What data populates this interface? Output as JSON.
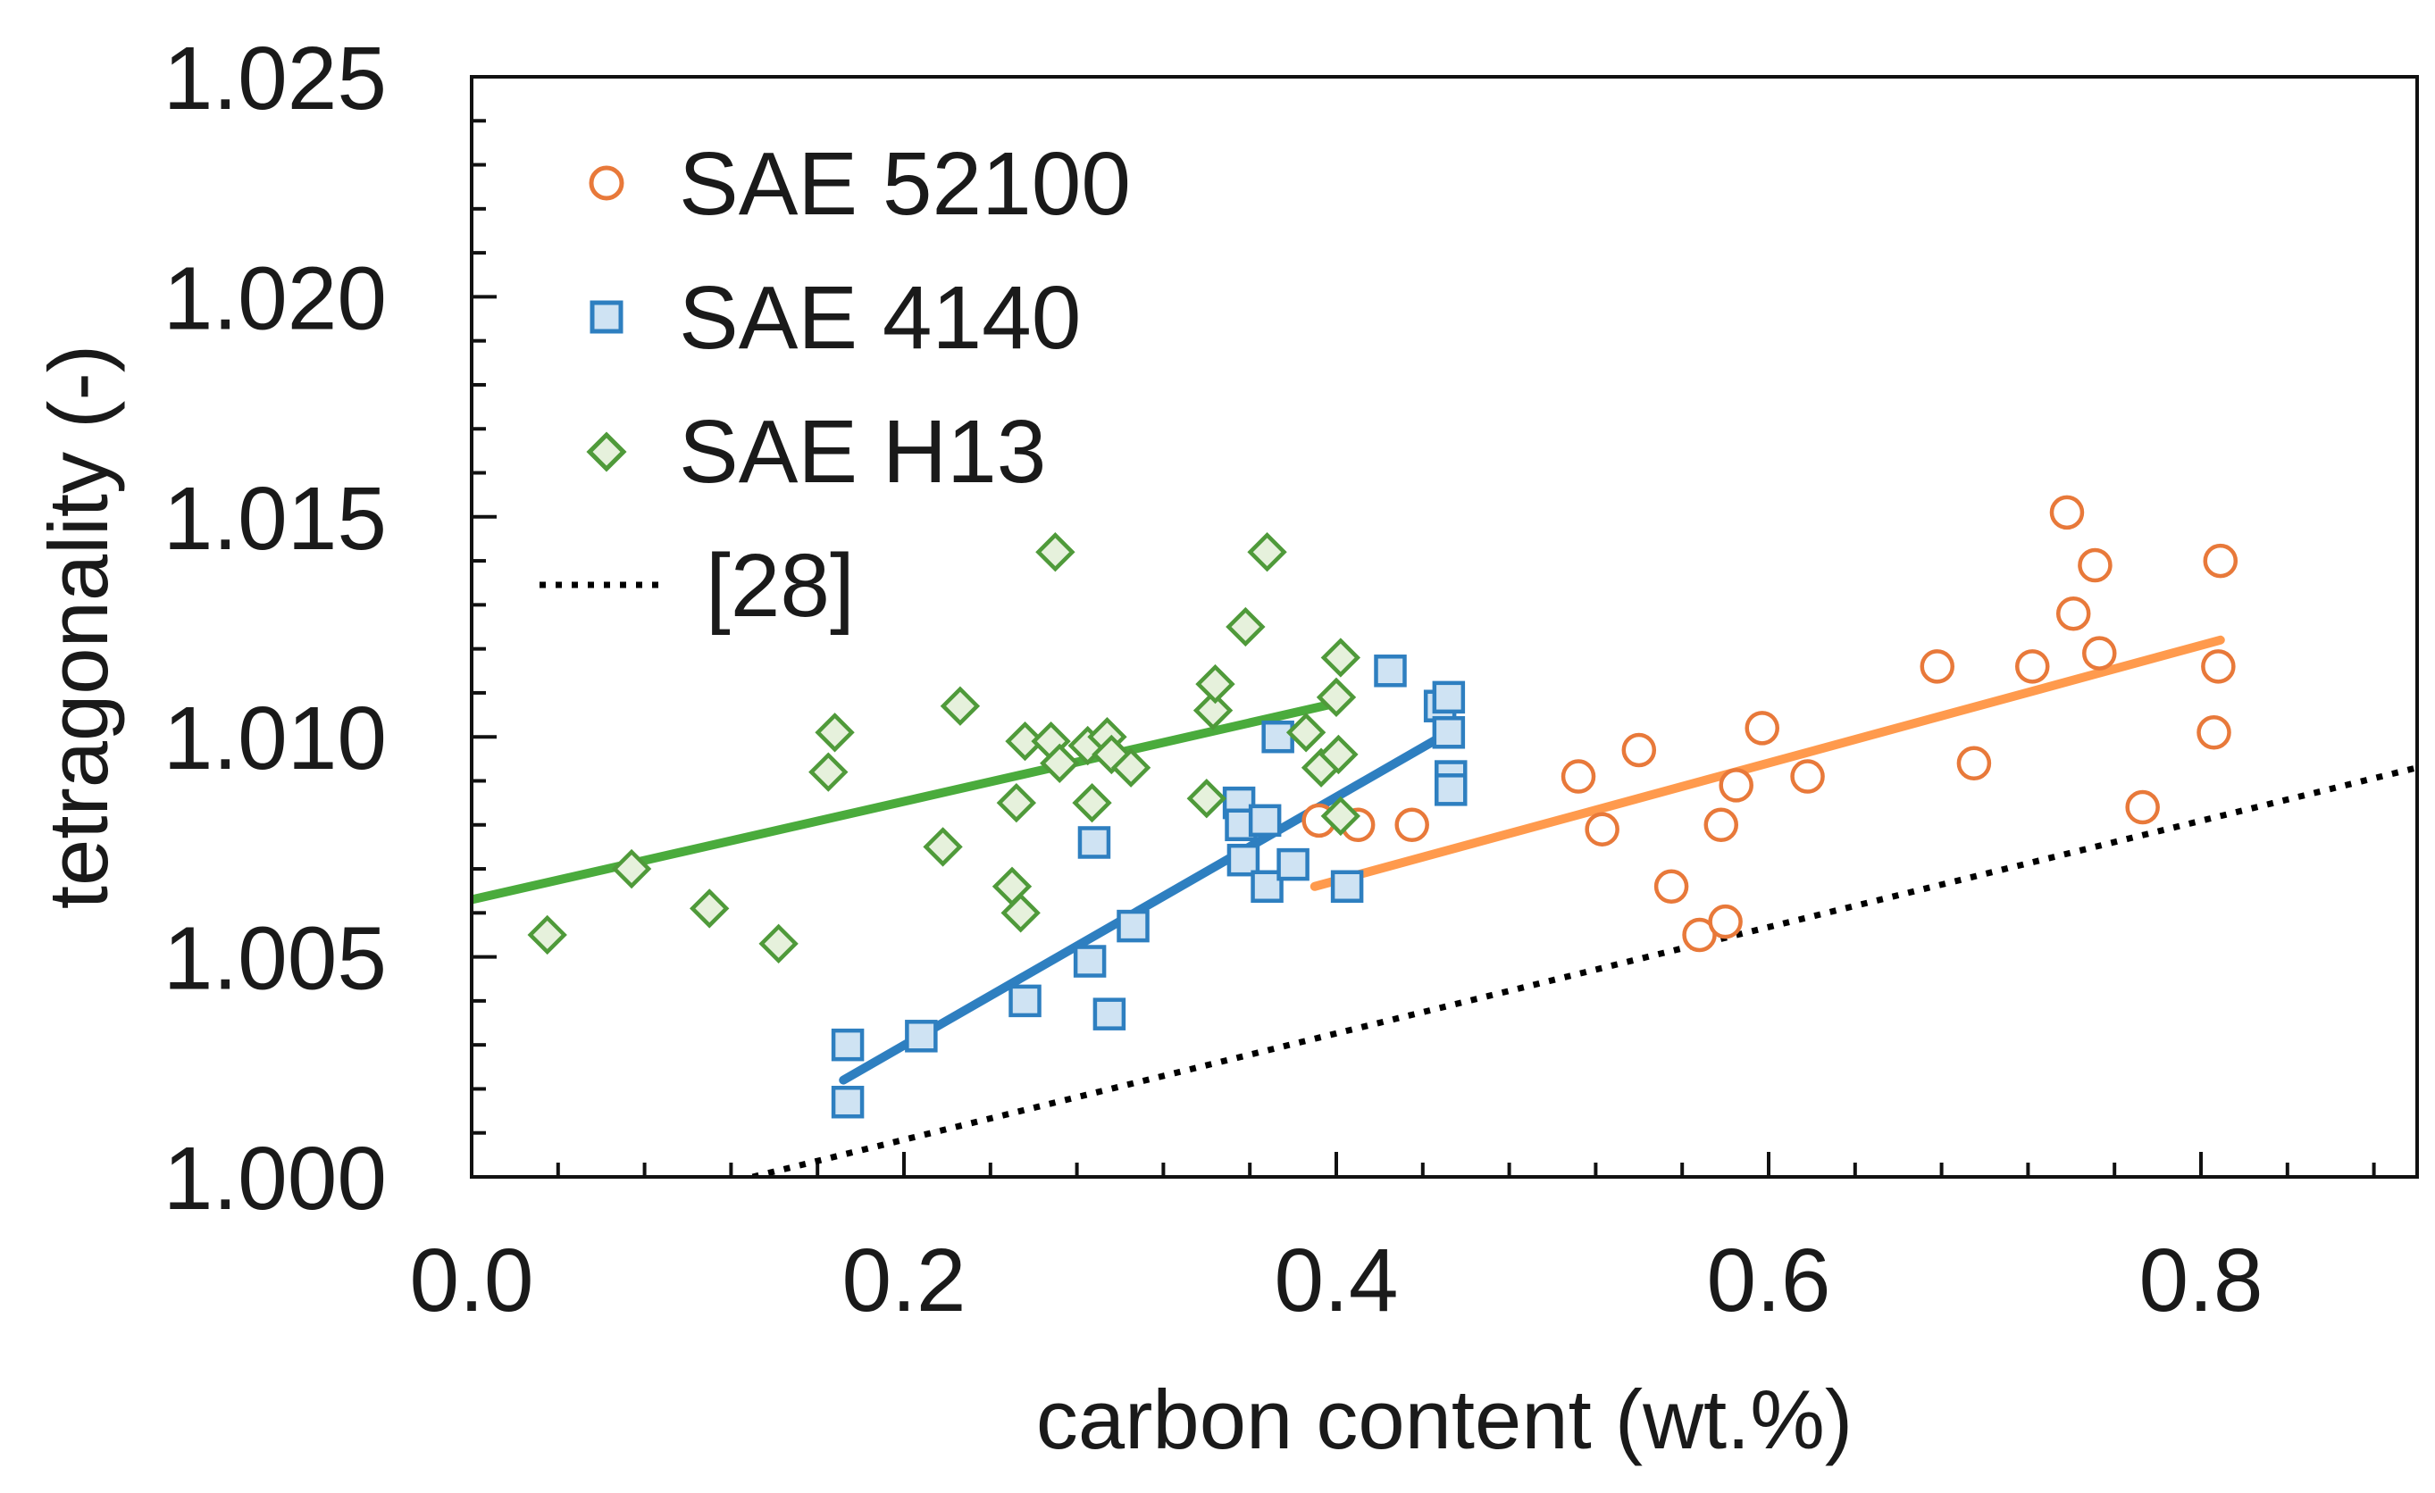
{
  "chart_data": {
    "type": "scatter",
    "title": "",
    "xlabel": "carbon content (wt.%)",
    "ylabel": "tetragonality (-)",
    "xlim": [
      0.0,
      0.9
    ],
    "ylim": [
      1.0,
      1.025
    ],
    "x_ticks": [
      "0.0",
      "0.2",
      "0.4",
      "0.6",
      "0.8"
    ],
    "y_ticks": [
      "1.000",
      "1.005",
      "1.010",
      "1.015",
      "1.020",
      "1.025"
    ],
    "legend_position": "top-left",
    "series": [
      {
        "name": "SAE 52100",
        "marker": "circle",
        "color": "#e8793a",
        "fill": "#ffffff",
        "points": [
          [
            0.392,
            1.0081
          ],
          [
            0.41,
            1.008
          ],
          [
            0.435,
            1.008
          ],
          [
            0.512,
            1.0091
          ],
          [
            0.523,
            1.0079
          ],
          [
            0.54,
            1.0097
          ],
          [
            0.555,
            1.0066
          ],
          [
            0.568,
            1.0055
          ],
          [
            0.578,
            1.008
          ],
          [
            0.58,
            1.0058
          ],
          [
            0.585,
            1.0089
          ],
          [
            0.597,
            1.0102
          ],
          [
            0.618,
            1.0091
          ],
          [
            0.678,
            1.0116
          ],
          [
            0.695,
            1.0094
          ],
          [
            0.722,
            1.0116
          ],
          [
            0.738,
            1.0151
          ],
          [
            0.741,
            1.0128
          ],
          [
            0.751,
            1.0139
          ],
          [
            0.753,
            1.0119
          ],
          [
            0.773,
            1.0084
          ],
          [
            0.806,
            1.0101
          ],
          [
            0.808,
            1.0116
          ],
          [
            0.809,
            1.014
          ]
        ],
        "fit": {
          "x": [
            0.39,
            0.809
          ],
          "y": [
            1.0066,
            1.0122
          ],
          "color": "#ff9a4d"
        }
      },
      {
        "name": "SAE 4140",
        "marker": "square",
        "color": "#2e7fc0",
        "fill": "#cfe3f3",
        "points": [
          [
            0.174,
            1.003
          ],
          [
            0.174,
            1.0017
          ],
          [
            0.208,
            1.0032
          ],
          [
            0.256,
            1.004
          ],
          [
            0.286,
            1.0049
          ],
          [
            0.288,
            1.0076
          ],
          [
            0.295,
            1.0037
          ],
          [
            0.306,
            1.0057
          ],
          [
            0.355,
            1.0085
          ],
          [
            0.356,
            1.008
          ],
          [
            0.357,
            1.0072
          ],
          [
            0.367,
            1.0081
          ],
          [
            0.368,
            1.0066
          ],
          [
            0.373,
            1.01
          ],
          [
            0.38,
            1.0071
          ],
          [
            0.405,
            1.0066
          ],
          [
            0.425,
            1.0115
          ],
          [
            0.448,
            1.0107
          ],
          [
            0.452,
            1.0109
          ],
          [
            0.452,
            1.0101
          ],
          [
            0.453,
            1.0091
          ],
          [
            0.453,
            1.0088
          ]
        ],
        "fit": {
          "x": [
            0.172,
            0.452
          ],
          "y": [
            1.0022,
            1.0101
          ],
          "color": "#2e7fc0"
        }
      },
      {
        "name": "SAE H13",
        "marker": "diamond",
        "color": "#4f9a3a",
        "fill": "#e6f1dc",
        "points": [
          [
            0.035,
            1.0055
          ],
          [
            0.074,
            1.007
          ],
          [
            0.11,
            1.0061
          ],
          [
            0.142,
            1.0053
          ],
          [
            0.165,
            1.0092
          ],
          [
            0.168,
            1.0101
          ],
          [
            0.218,
            1.0075
          ],
          [
            0.226,
            1.0107
          ],
          [
            0.25,
            1.0066
          ],
          [
            0.252,
            1.0085
          ],
          [
            0.254,
            1.006
          ],
          [
            0.256,
            1.0099
          ],
          [
            0.268,
            1.0099
          ],
          [
            0.27,
            1.0142
          ],
          [
            0.272,
            1.0094
          ],
          [
            0.285,
            1.0098
          ],
          [
            0.287,
            1.0085
          ],
          [
            0.294,
            1.01
          ],
          [
            0.296,
            1.0096
          ],
          [
            0.305,
            1.0093
          ],
          [
            0.34,
            1.0086
          ],
          [
            0.343,
            1.0106
          ],
          [
            0.344,
            1.0112
          ],
          [
            0.358,
            1.0125
          ],
          [
            0.368,
            1.0142
          ],
          [
            0.386,
            1.0101
          ],
          [
            0.393,
            1.0093
          ],
          [
            0.4,
            1.0109
          ],
          [
            0.401,
            1.0096
          ],
          [
            0.402,
            1.0082
          ],
          [
            0.402,
            1.0118
          ]
        ],
        "fit": {
          "x": [
            0.0,
            0.403
          ],
          "y": [
            1.0063,
            1.0108
          ],
          "color": "#4aab3c"
        }
      }
    ],
    "reference_line": {
      "name": "[28]",
      "style": "dotted",
      "color": "#000000",
      "x": [
        0.13,
        0.9
      ],
      "y": [
        1.0,
        1.0093
      ]
    }
  }
}
